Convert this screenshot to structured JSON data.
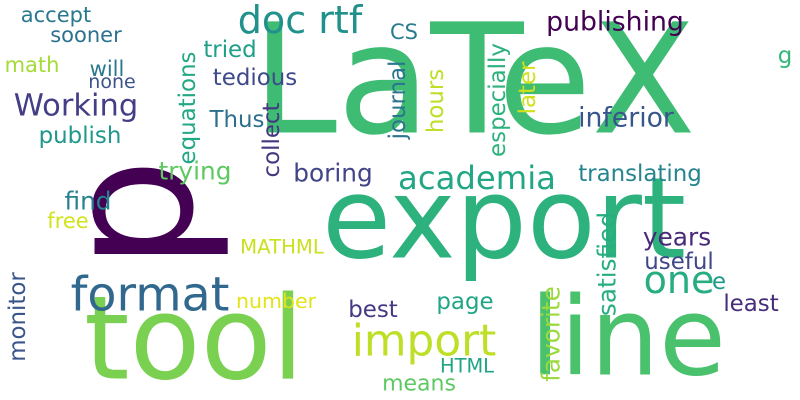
{
  "word_cloud": {
    "background": "#ffffff",
    "words": [
      {
        "text": "LaTeX",
        "color": "#3ebc73"
      },
      {
        "text": "export",
        "color": "#2db27d"
      },
      {
        "text": "tool",
        "color": "#7ad151"
      },
      {
        "text": "line",
        "color": "#4ac16d"
      },
      {
        "text": "p",
        "color": "#440154"
      },
      {
        "text": "format",
        "color": "#31688e"
      },
      {
        "text": "doc rtf",
        "color": "#21918c"
      },
      {
        "text": "import",
        "color": "#bddf26"
      },
      {
        "text": "one",
        "color": "#27ad81"
      },
      {
        "text": "academia",
        "color": "#22a785"
      },
      {
        "text": "Working",
        "color": "#433e85"
      },
      {
        "text": "publishing",
        "color": "#440154"
      },
      {
        "text": "accept",
        "color": "#2a788e"
      },
      {
        "text": "sooner",
        "color": "#2c728e"
      },
      {
        "text": "math",
        "color": "#a5db36"
      },
      {
        "text": "will",
        "color": "#2a788e"
      },
      {
        "text": "none",
        "color": "#3b528b"
      },
      {
        "text": "publish",
        "color": "#1f988b"
      },
      {
        "text": "CS",
        "color": "#287c8e"
      },
      {
        "text": "tried",
        "color": "#1f9e89"
      },
      {
        "text": "tedious",
        "color": "#3e4989"
      },
      {
        "text": "Thus",
        "color": "#2d708e"
      },
      {
        "text": "inferior",
        "color": "#39568c"
      },
      {
        "text": "trying",
        "color": "#5ec962"
      },
      {
        "text": "boring",
        "color": "#414487"
      },
      {
        "text": "find",
        "color": "#26828e"
      },
      {
        "text": "free",
        "color": "#d2e21b"
      },
      {
        "text": "MATHML",
        "color": "#cae11f"
      },
      {
        "text": "number",
        "color": "#e2e418"
      },
      {
        "text": "best",
        "color": "#443983"
      },
      {
        "text": "HTML",
        "color": "#20a486"
      },
      {
        "text": "means",
        "color": "#5ec962"
      },
      {
        "text": "page",
        "color": "#21a685"
      },
      {
        "text": "years",
        "color": "#482878"
      },
      {
        "text": "useful",
        "color": "#3f4788"
      },
      {
        "text": "translating",
        "color": "#25858e"
      },
      {
        "text": "least",
        "color": "#472c7a"
      },
      {
        "text": "e",
        "color": "#1f9a8a"
      },
      {
        "text": "g",
        "color": "#35b779"
      },
      {
        "text": "equations",
        "color": "#22a884"
      },
      {
        "text": "collect",
        "color": "#453781"
      },
      {
        "text": "journal",
        "color": "#2b758e"
      },
      {
        "text": "hours",
        "color": "#bddf26"
      },
      {
        "text": "especially",
        "color": "#2db27d"
      },
      {
        "text": "later",
        "color": "#d0e11c"
      },
      {
        "text": "satisfied",
        "color": "#26ad81"
      },
      {
        "text": "favorite",
        "color": "#9bd93c"
      },
      {
        "text": "monitor",
        "color": "#39568c"
      }
    ]
  }
}
